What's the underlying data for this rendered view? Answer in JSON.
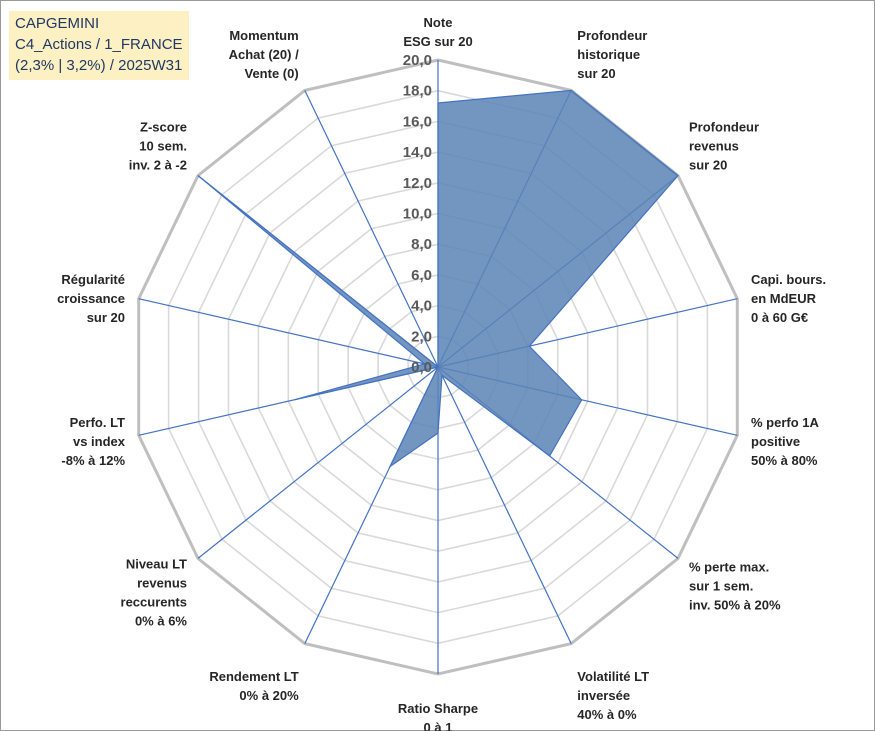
{
  "title": {
    "line1": "CAPGEMINI",
    "line2": "C4_Actions / 1_FRANCE",
    "line3": "(2,3% | 3,2%) / 2025W31"
  },
  "chart_data": {
    "type": "radar",
    "rmin": 0,
    "rmax": 20,
    "tick_step": 2,
    "gridlines": true,
    "ticks": [
      "0,0",
      "2,0",
      "4,0",
      "6,0",
      "8,0",
      "10,0",
      "12,0",
      "14,0",
      "16,0",
      "18,0",
      "20,0"
    ],
    "categories": [
      [
        "Note",
        "ESG sur 20"
      ],
      [
        "Profondeur",
        "historique",
        "sur 20"
      ],
      [
        "Profondeur",
        "revenus",
        "sur 20"
      ],
      [
        "Capi. bours.",
        "en MdEUR",
        "0 à 60 G€"
      ],
      [
        "% perfo 1A",
        "positive",
        "50% à 80%"
      ],
      [
        "% perte max.",
        "sur 1 sem.",
        "inv. 50% à 20%"
      ],
      [
        "Volatilité LT",
        "inversée",
        "40% à 0%"
      ],
      [
        "Ratio Sharpe",
        "0 à 1"
      ],
      [
        "Rendement LT",
        "0% à 20%"
      ],
      [
        "Niveau LT",
        "revenus",
        "reccurents",
        "0% à 6%"
      ],
      [
        "Perfo. LT",
        "vs index",
        "-8% à 12%"
      ],
      [
        "Régularité",
        "croissance",
        "sur 20"
      ],
      [
        "Z-score",
        "10 sem.",
        "inv. 2 à -2"
      ],
      [
        "Momentum",
        "Achat (20) /",
        "Vente (0)"
      ]
    ],
    "series": [
      {
        "values": [
          17.2,
          20,
          20,
          6.1,
          9.6,
          9.3,
          0.6,
          4.3,
          7.2,
          0,
          9.6,
          0.9,
          20,
          0
        ],
        "color": "#5b84b5",
        "outline": "#4472c4"
      }
    ],
    "spoke_color": "#4472c4",
    "grid_color": "#d9d9d9",
    "outer_ring_color": "#bfbfbf"
  }
}
